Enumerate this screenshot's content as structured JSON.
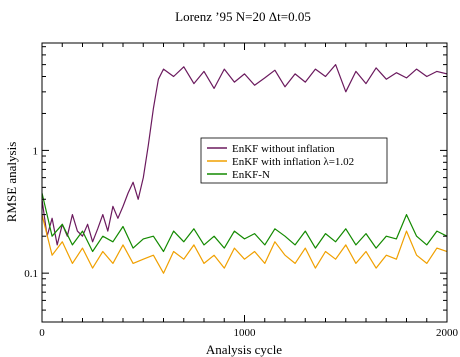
{
  "chart_data": {
    "type": "line",
    "title": "Lorenz ’95 N=20 Δt=0.05",
    "xlabel": "Analysis cycle",
    "ylabel": "RMSE analysis",
    "xlim": [
      0,
      2000
    ],
    "ylim": [
      0.04,
      7.5
    ],
    "yscale": "log",
    "grid": false,
    "legend_position": "center-right",
    "x_ticks": [
      {
        "value": 0,
        "label": "0"
      },
      {
        "value": 1000,
        "label": "1000"
      },
      {
        "value": 2000,
        "label": "2000"
      }
    ],
    "y_ticks": [
      {
        "value": 0.1,
        "label": "0.1"
      },
      {
        "value": 1,
        "label": "1"
      }
    ],
    "series": [
      {
        "name": "EnKF without inflation",
        "color": "#6b1a5e",
        "x": [
          0,
          25,
          50,
          75,
          100,
          125,
          150,
          175,
          200,
          225,
          250,
          275,
          300,
          325,
          350,
          375,
          400,
          425,
          450,
          475,
          500,
          525,
          550,
          575,
          600,
          650,
          700,
          750,
          800,
          850,
          900,
          950,
          1000,
          1050,
          1100,
          1150,
          1200,
          1250,
          1300,
          1350,
          1400,
          1450,
          1500,
          1550,
          1600,
          1650,
          1700,
          1750,
          1800,
          1850,
          1900,
          1950,
          2000
        ],
        "values": [
          0.4,
          0.2,
          0.28,
          0.17,
          0.25,
          0.2,
          0.3,
          0.22,
          0.2,
          0.25,
          0.18,
          0.23,
          0.3,
          0.22,
          0.35,
          0.28,
          0.35,
          0.45,
          0.55,
          0.4,
          0.6,
          1.1,
          2.2,
          3.8,
          4.6,
          4.0,
          4.8,
          3.5,
          4.4,
          3.2,
          4.6,
          3.6,
          4.2,
          3.4,
          3.9,
          4.5,
          3.3,
          4.2,
          3.6,
          4.6,
          4.0,
          5.0,
          3.0,
          4.4,
          3.5,
          4.7,
          3.8,
          4.3,
          3.9,
          4.6,
          4.0,
          4.4,
          4.2
        ]
      },
      {
        "name": "EnKF with inflation λ=1.02",
        "color": "#f0a000",
        "x": [
          0,
          50,
          100,
          150,
          200,
          250,
          300,
          350,
          400,
          450,
          500,
          550,
          600,
          650,
          700,
          750,
          800,
          850,
          900,
          950,
          1000,
          1050,
          1100,
          1150,
          1200,
          1250,
          1300,
          1350,
          1400,
          1450,
          1500,
          1550,
          1600,
          1650,
          1700,
          1750,
          1800,
          1850,
          1900,
          1950,
          2000
        ],
        "values": [
          0.3,
          0.14,
          0.18,
          0.12,
          0.16,
          0.11,
          0.15,
          0.12,
          0.17,
          0.12,
          0.13,
          0.14,
          0.1,
          0.15,
          0.13,
          0.17,
          0.12,
          0.14,
          0.11,
          0.16,
          0.13,
          0.15,
          0.12,
          0.18,
          0.14,
          0.12,
          0.16,
          0.11,
          0.15,
          0.13,
          0.17,
          0.12,
          0.15,
          0.11,
          0.14,
          0.13,
          0.22,
          0.14,
          0.12,
          0.16,
          0.15
        ]
      },
      {
        "name": "EnKF-N",
        "color": "#138a00",
        "x": [
          0,
          50,
          100,
          150,
          200,
          250,
          300,
          350,
          400,
          450,
          500,
          550,
          600,
          650,
          700,
          750,
          800,
          850,
          900,
          950,
          1000,
          1050,
          1100,
          1150,
          1200,
          1250,
          1300,
          1350,
          1400,
          1450,
          1500,
          1550,
          1600,
          1650,
          1700,
          1750,
          1800,
          1850,
          1900,
          1950,
          2000
        ],
        "values": [
          0.45,
          0.2,
          0.25,
          0.17,
          0.22,
          0.15,
          0.2,
          0.18,
          0.24,
          0.16,
          0.19,
          0.2,
          0.15,
          0.22,
          0.18,
          0.23,
          0.17,
          0.2,
          0.16,
          0.22,
          0.19,
          0.21,
          0.17,
          0.23,
          0.2,
          0.17,
          0.22,
          0.16,
          0.21,
          0.18,
          0.23,
          0.17,
          0.21,
          0.16,
          0.2,
          0.19,
          0.3,
          0.2,
          0.17,
          0.22,
          0.2
        ]
      }
    ]
  }
}
